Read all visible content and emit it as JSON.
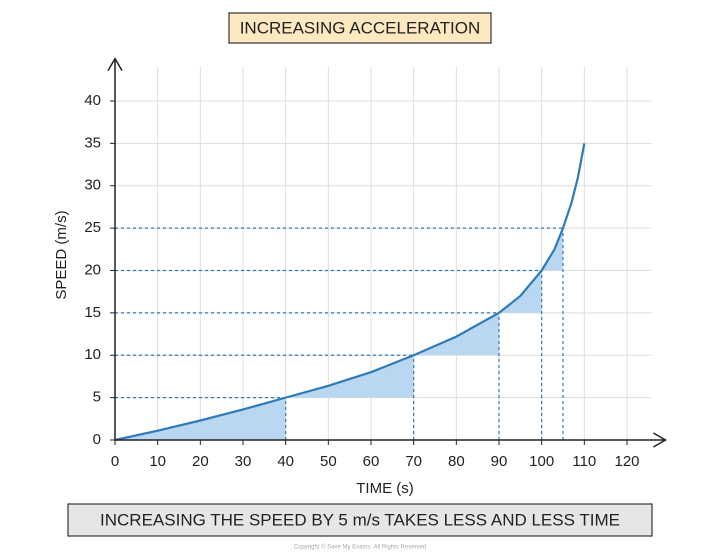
{
  "chart_data": {
    "type": "line",
    "title": "INCREASING ACCELERATION",
    "caption": "INCREASING THE SPEED BY 5 m/s TAKES LESS AND LESS TIME",
    "xlabel": "TIME (s)",
    "ylabel": "SPEED (m/s)",
    "copyright": "Copyright © Save My Exams. All Rights Reserved",
    "x": [
      0,
      10,
      20,
      30,
      40,
      50,
      60,
      70,
      80,
      90,
      95,
      100,
      103,
      105,
      107,
      108.5,
      110
    ],
    "series": [
      {
        "color": "#2f7ab9",
        "values": [
          0,
          1.1,
          2.3,
          3.6,
          5,
          6.4,
          8,
          10,
          12.2,
          15,
          17,
          20,
          22.5,
          25,
          28,
          31,
          35
        ]
      }
    ],
    "guides": {
      "x": [
        40,
        70,
        90,
        100,
        105
      ],
      "y": [
        5,
        10,
        15,
        20,
        25
      ],
      "color": "#2f7ab9",
      "fill": "#b9d7f0"
    },
    "xlim": [
      0,
      129
    ],
    "ylim": [
      0,
      45
    ],
    "xticks": [
      0,
      10,
      20,
      30,
      40,
      50,
      60,
      70,
      80,
      90,
      100,
      110,
      120
    ],
    "yticks": [
      0,
      5,
      10,
      15,
      20,
      25,
      30,
      35,
      40
    ],
    "grid": true
  }
}
